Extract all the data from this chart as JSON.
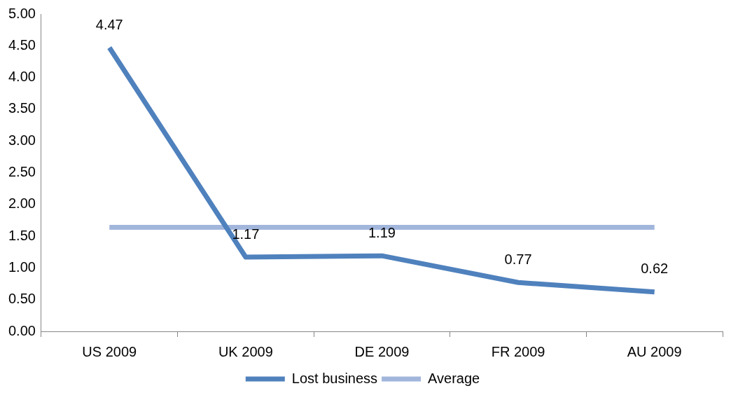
{
  "chart_data": {
    "type": "line",
    "categories": [
      "US 2009",
      "UK 2009",
      "DE 2009",
      "FR 2009",
      "AU 2009"
    ],
    "series": [
      {
        "name": "Lost business",
        "color": "#4f81bd",
        "values": [
          4.47,
          1.17,
          1.19,
          0.77,
          0.62
        ],
        "value_labels": [
          "4.47",
          "1.17",
          "1.19",
          "0.77",
          "0.62"
        ]
      },
      {
        "name": "Average",
        "color": "#a2b6dc",
        "values": [
          1.64,
          1.64,
          1.64,
          1.64,
          1.64
        ]
      }
    ],
    "ylim": [
      0,
      5
    ],
    "yticks": [
      {
        "value": 0,
        "label": "0.00"
      },
      {
        "value": 0.5,
        "label": "0.50"
      },
      {
        "value": 1,
        "label": "1.00"
      },
      {
        "value": 1.5,
        "label": "1.50"
      },
      {
        "value": 2,
        "label": "2.00"
      },
      {
        "value": 2.5,
        "label": "2.50"
      },
      {
        "value": 3,
        "label": "3.00"
      },
      {
        "value": 3.5,
        "label": "3.50"
      },
      {
        "value": 4,
        "label": "4.00"
      },
      {
        "value": 4.5,
        "label": "4.50"
      },
      {
        "value": 5,
        "label": "5.00"
      }
    ],
    "grid": false,
    "legend": "bottom",
    "marker": "none",
    "line_style": "solid"
  }
}
